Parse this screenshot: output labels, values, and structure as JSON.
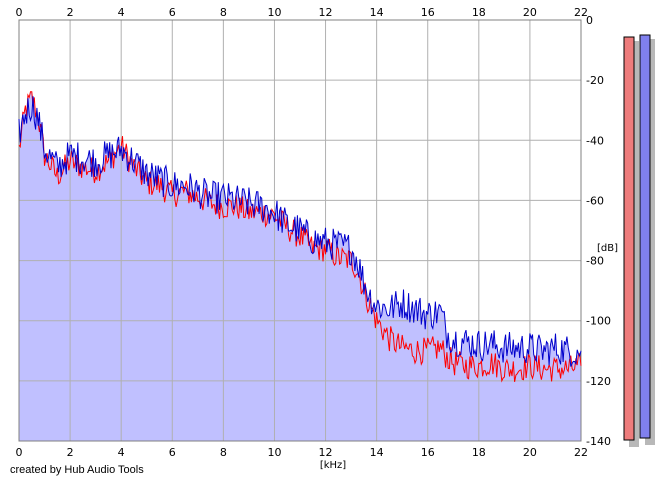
{
  "credit": "created by Hub Audio Tools",
  "colors": {
    "left_channel": "#ff0000",
    "right_channel": "#0000cc",
    "area_fill": "#c0c0ff",
    "grid": "#b0b0b0",
    "left_meter": "#ee7c7c",
    "right_meter": "#8080ee"
  },
  "chart_data": {
    "type": "line",
    "xlabel": "[kHz]",
    "ylabel": "[dB]",
    "xlim": [
      0,
      22
    ],
    "ylim": [
      -140,
      0
    ],
    "x_ticks": [
      "0",
      "2",
      "4",
      "6",
      "8",
      "10",
      "12",
      "14",
      "16",
      "18",
      "20",
      "22"
    ],
    "y_ticks": [
      "0",
      "-20",
      "-40",
      "-60",
      "-80",
      "-100",
      "-120",
      "-140"
    ],
    "grid": true,
    "area_fill": true,
    "series": [
      {
        "color": "#ff0000",
        "x": [
          0,
          0.25,
          0.5,
          0.75,
          1,
          1.5,
          2,
          2.5,
          3,
          3.5,
          4,
          4.5,
          5,
          5.5,
          6,
          6.5,
          7,
          7.5,
          8,
          8.5,
          9,
          9.5,
          10,
          10.5,
          11,
          11.5,
          12,
          12.5,
          13,
          13.25,
          13.5,
          13.75,
          14,
          14.5,
          15,
          15.5,
          16,
          16.5,
          16.75,
          17,
          17.5,
          18,
          18.5,
          19,
          19.5,
          20,
          20.5,
          21,
          21.5,
          22
        ],
        "y": [
          -43,
          -30,
          -26,
          -32,
          -45,
          -52,
          -47,
          -49,
          -50,
          -47,
          -42,
          -49,
          -54,
          -55,
          -58,
          -57,
          -59,
          -61,
          -62,
          -62,
          -64,
          -64,
          -65,
          -69,
          -72,
          -76,
          -76,
          -79,
          -80,
          -83,
          -90,
          -95,
          -100,
          -106,
          -109,
          -110,
          -110,
          -109,
          -112,
          -114,
          -115,
          -115,
          -114,
          -116,
          -116,
          -115,
          -116,
          -116,
          -116,
          -115
        ]
      },
      {
        "color": "#0000cc",
        "x": [
          0,
          0.25,
          0.5,
          0.75,
          1,
          1.5,
          2,
          2.5,
          3,
          3.5,
          4,
          4.5,
          5,
          5.5,
          6,
          6.5,
          7,
          7.5,
          8,
          8.5,
          9,
          9.5,
          10,
          10.5,
          11,
          11.5,
          12,
          12.5,
          13,
          13.25,
          13.5,
          13.75,
          14,
          14.5,
          15,
          15.5,
          16,
          16.5,
          16.75,
          17,
          17.5,
          18,
          18.5,
          19,
          19.5,
          20,
          20.5,
          21,
          21.5,
          22
        ],
        "y": [
          -38,
          -31,
          -28,
          -33,
          -43,
          -49,
          -45,
          -46,
          -47,
          -45,
          -43,
          -47,
          -51,
          -53,
          -55,
          -55,
          -57,
          -59,
          -59,
          -60,
          -61,
          -62,
          -64,
          -68,
          -70,
          -73,
          -74,
          -75,
          -76,
          -80,
          -87,
          -92,
          -95,
          -96,
          -94,
          -96,
          -98,
          -97,
          -104,
          -106,
          -107,
          -108,
          -108,
          -109,
          -109,
          -109,
          -110,
          -109,
          -110,
          -110
        ]
      }
    ]
  }
}
